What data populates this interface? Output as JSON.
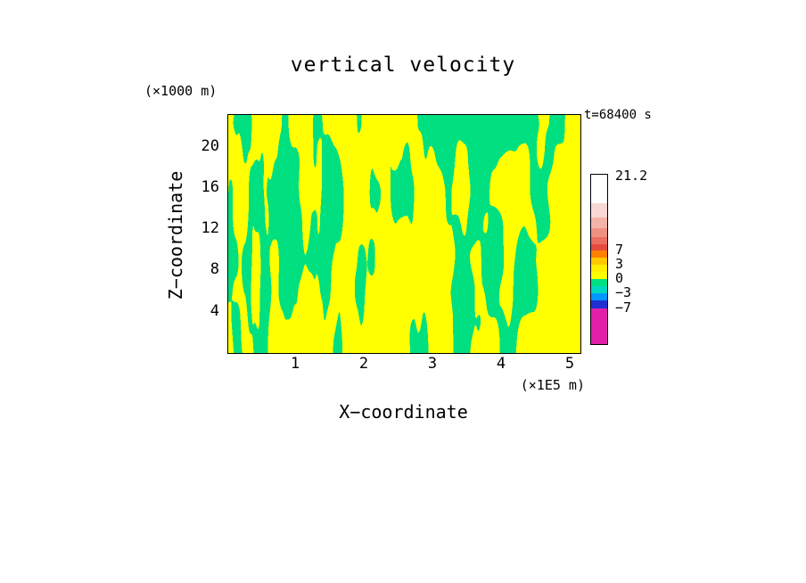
{
  "title": "vertical velocity",
  "annotations": {
    "time_label": "t=68400 s",
    "z_units_label": "(×1000 m)",
    "x_units_label": "(×1E5 m)"
  },
  "axes": {
    "x": {
      "label": "X−coordinate",
      "ticks": [
        "1",
        "2",
        "3",
        "4",
        "5"
      ]
    },
    "z": {
      "label": "Z−coordinate",
      "ticks": [
        "20",
        "16",
        "12",
        "8",
        "4"
      ]
    }
  },
  "colorbar": {
    "top_label": "21.2",
    "boundary_labels": [
      {
        "text": "7",
        "after_segment": 6
      },
      {
        "text": "3",
        "after_segment": 8
      },
      {
        "text": "0",
        "after_segment": 10
      },
      {
        "text": "−3",
        "after_segment": 12
      },
      {
        "text": "−7",
        "after_segment": 14
      }
    ],
    "segments": [
      {
        "color": "#FFFFFF",
        "h": 32
      },
      {
        "color": "#F8D8D2",
        "h": 16
      },
      {
        "color": "#F3B4A8",
        "h": 12
      },
      {
        "color": "#EE9183",
        "h": 10
      },
      {
        "color": "#EA6F60",
        "h": 8
      },
      {
        "color": "#E54B3E",
        "h": 7
      },
      {
        "color": "#FF7F00",
        "h": 8
      },
      {
        "color": "#FFC800",
        "h": 8
      },
      {
        "color": "#FFF000",
        "h": 8
      },
      {
        "color": "#FFFF00",
        "h": 8
      },
      {
        "color": "#00E080",
        "h": 8
      },
      {
        "color": "#00D8C0",
        "h": 8
      },
      {
        "color": "#0098FF",
        "h": 8
      },
      {
        "color": "#2030D0",
        "h": 9
      },
      {
        "color": "#E020A8",
        "h": 40
      }
    ]
  },
  "chart_data": {
    "type": "heatmap",
    "title": "vertical velocity",
    "time_annotation": "t=68400 s",
    "xlabel": "X−coordinate (×1E5 m)",
    "ylabel": "Z−coordinate (×1000 m)",
    "x_ticks": [
      1,
      2,
      3,
      4,
      5
    ],
    "z_ticks": [
      4,
      8,
      12,
      16,
      20
    ],
    "xlim": [
      0,
      5.15
    ],
    "zlim": [
      0,
      23
    ],
    "colorbar_tick_values": [
      21.2,
      7,
      3,
      0,
      -3,
      -7
    ],
    "field_colors": {
      "positive_band": "#FFFF00",
      "negative_band": "#00E080"
    },
    "field_note": "two-level filled contour field of vertical velocity: yellow where 0<w<3, green where −3<w<0; narrow wavy vertical streaks on the left, broader blobs toward the right",
    "pattern": {
      "seed": 20240613,
      "threshold": 0.5,
      "stretch_left": 1.5,
      "stretch_slope": 0.85,
      "octaves": [
        {
          "fx": 26,
          "fz": 3.0,
          "amp": 1.0,
          "ox": 0,
          "oy": 0
        },
        {
          "fx": 55,
          "fz": 7.0,
          "amp": 0.45,
          "ox": 37.2,
          "oy": 11.8
        },
        {
          "fx": 4,
          "fz": 1.3,
          "amp": 0.8,
          "ox": 7.7,
          "oy": 3.3
        }
      ]
    }
  }
}
